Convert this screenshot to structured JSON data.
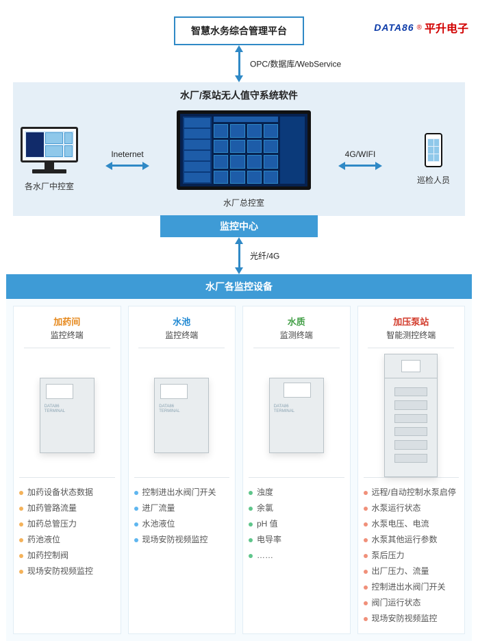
{
  "logo": {
    "data": "DATA86",
    "reg": "®",
    "ch": "平升电子"
  },
  "top_box": "智慧水务综合管理平台",
  "arrow1_label": "OPC/数据库/WebService",
  "mid": {
    "title": "水厂/泵站无人值守系统软件",
    "left_arr": "Ineternet",
    "right_arr": "4G/WIFI",
    "station_left": "各水厂中控室",
    "station_mid": "水厂总控室",
    "station_right": "巡检人员",
    "watch": "监控中心"
  },
  "arrow2_label": "光纤/4G",
  "equip_bar": "水厂各监控设备",
  "cards": [
    {
      "title": "加药间",
      "title_class": "t-orange",
      "sub": "监控终端",
      "dot": "dot",
      "items": [
        "加药设备状态数据",
        "加药管路流量",
        "加药总管压力",
        "药池液位",
        "加药控制阀",
        "现场安防视频监控"
      ]
    },
    {
      "title": "水池",
      "title_class": "t-blue",
      "sub": "监控终端",
      "dot": "dot blue",
      "items": [
        "控制进出水阀门开关",
        "进厂流量",
        "水池液位",
        "现场安防视频监控"
      ]
    },
    {
      "title": "水质",
      "title_class": "t-green",
      "sub": "监测终端",
      "dot": "dot green",
      "items": [
        "浊度",
        "余氯",
        "pH 值",
        "电导率",
        "……"
      ]
    },
    {
      "title": "加压泵站",
      "title_class": "t-red",
      "sub": "智能测控终端",
      "dot": "dot pink",
      "items": [
        "远程/自动控制水泵启停",
        "水泵运行状态",
        "水泵电压、电流",
        "水泵其他运行参数",
        "泵后压力",
        "出厂压力、流量",
        "控制进出水阀门开关",
        "阀门运行状态",
        "现场安防视频监控"
      ]
    }
  ]
}
